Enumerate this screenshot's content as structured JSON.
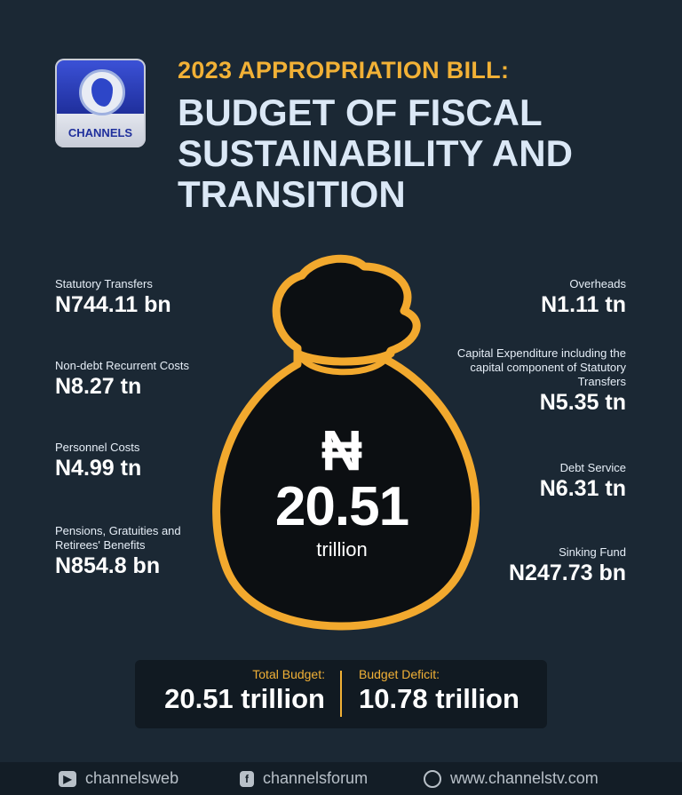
{
  "header": {
    "logo_text": "CHANNELS",
    "kicker": "2023 APPROPRIATION BILL:",
    "title": "BUDGET OF FISCAL SUSTAINABILITY AND TRANSITION"
  },
  "left_items": [
    {
      "label": "Statutory Transfers",
      "value": "N744.11 bn"
    },
    {
      "label": "Non-debt Recurrent Costs",
      "value": "N8.27 tn"
    },
    {
      "label": "Personnel Costs",
      "value": "N4.99 tn"
    },
    {
      "label": "Pensions, Gratuities and Retirees' Benefits",
      "value": "N854.8 bn"
    }
  ],
  "right_items": [
    {
      "label": "Overheads",
      "value": "N1.11 tn"
    },
    {
      "label": "Capital Expenditure including the capital component of Statutory Transfers",
      "value": "N5.35 tn"
    },
    {
      "label": "Debt Service",
      "value": "N6.31 tn"
    },
    {
      "label": "Sinking Fund",
      "value": "N247.73 bn"
    }
  ],
  "bag": {
    "currency": "₦",
    "amount": "20.51",
    "unit": "trillion"
  },
  "summary": {
    "total_label": "Total Budget:",
    "total_value": "20.51 trillion",
    "deficit_label": "Budget Deficit:",
    "deficit_value": "10.78 trillion"
  },
  "footer": [
    {
      "icon": "youtube-icon",
      "text": "channelsweb"
    },
    {
      "icon": "facebook-icon",
      "text": "channelsforum"
    },
    {
      "icon": "globe-icon",
      "text": "www.channelstv.com"
    }
  ],
  "colors": {
    "background": "#1b2834",
    "accent": "#f2b136",
    "title": "#dbe8f6"
  }
}
